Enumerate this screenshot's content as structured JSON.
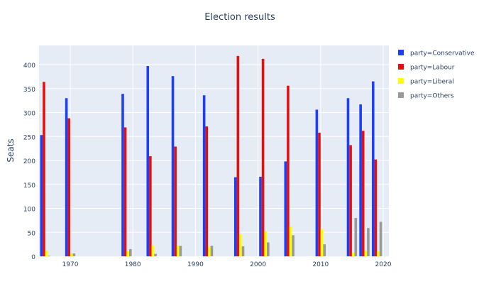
{
  "chart_data": {
    "type": "bar",
    "barmode": "group",
    "title": "Election results",
    "xlabel": "",
    "ylabel": "Seats",
    "x": [
      1966,
      1970,
      1979,
      1983,
      1987,
      1992,
      1997,
      2001,
      2005,
      2010,
      2015,
      2017,
      2019
    ],
    "xlim": [
      1965,
      2021
    ],
    "ylim": [
      0,
      440
    ],
    "xticks": [
      1970,
      1980,
      1990,
      2000,
      2010,
      2020
    ],
    "yticks": [
      0,
      50,
      100,
      150,
      200,
      250,
      300,
      350,
      400
    ],
    "grid": true,
    "legend_position": "right",
    "series": [
      {
        "name": "party=Conservative",
        "color": "#1f3ff5",
        "values": [
          253,
          330,
          339,
          397,
          376,
          336,
          165,
          166,
          198,
          306,
          330,
          317,
          365
        ]
      },
      {
        "name": "party=Labour",
        "color": "#e50f0f",
        "values": [
          364,
          288,
          269,
          209,
          229,
          271,
          418,
          412,
          356,
          258,
          232,
          262,
          202
        ]
      },
      {
        "name": "party=Liberal",
        "color": "#ffff00",
        "values": [
          12,
          6,
          11,
          23,
          22,
          20,
          46,
          52,
          62,
          57,
          8,
          12,
          11
        ]
      },
      {
        "name": "party=Others",
        "color": "#999999",
        "values": [
          1,
          6,
          15,
          5,
          22,
          22,
          21,
          29,
          44,
          25,
          80,
          59,
          72
        ]
      }
    ]
  }
}
